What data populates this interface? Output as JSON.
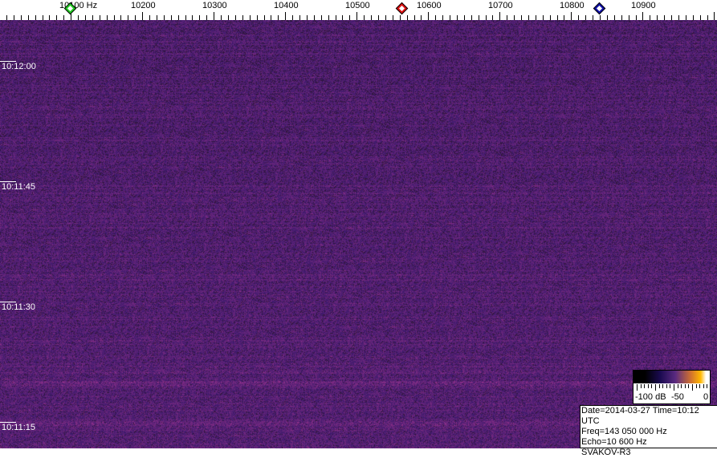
{
  "chart_data": {
    "type": "heatmap",
    "title": "",
    "x_tick_labels": [
      "10100 Hz",
      "10200",
      "10300",
      "10400",
      "10500",
      "10600",
      "10700",
      "10800",
      "10900"
    ],
    "x_ticks": [
      10100,
      10200,
      10300,
      10400,
      10500,
      10600,
      10700,
      10800,
      10900
    ],
    "xlim": [
      10001,
      11004
    ],
    "x_minor_tick_step": 10,
    "y_tick_labels": [
      "10:12:00",
      "10:11:45",
      "10:11:30",
      "10:11:15"
    ],
    "ylim": [
      "10:12:05.8",
      "10:11:12.4"
    ],
    "markers": [
      {
        "freq": 10100,
        "color": "#22cc22"
      },
      {
        "freq": 10564,
        "color": "#dd1111"
      },
      {
        "freq": 10840,
        "color": "#1111aa"
      }
    ],
    "colorbar": {
      "labels": [
        "-100 dB",
        "-50",
        "0"
      ],
      "range": [
        -100,
        0
      ]
    },
    "info": {
      "date_line": "Date=2014-03-27 Time=10:12 UTC",
      "freq_line": "Freq=143 050 000 Hz",
      "echo_line": "Echo=10 600 Hz",
      "station": "SVAKOV-R3"
    }
  }
}
